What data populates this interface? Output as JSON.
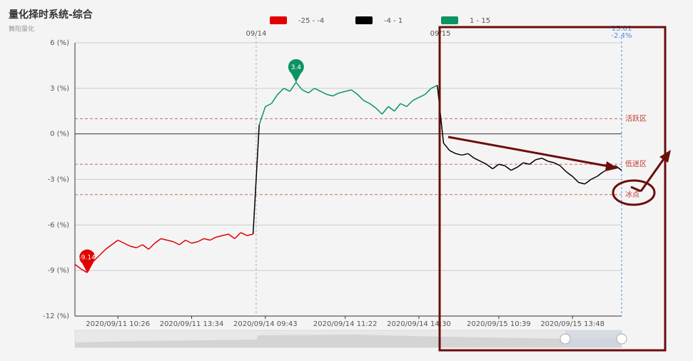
{
  "chart_data": {
    "type": "line",
    "title": "量化择时系统-综合",
    "subtitle": "舞阳量化",
    "pieces": [
      {
        "label": "-25 - -4",
        "min": -25,
        "max": -4,
        "color": "#e00000"
      },
      {
        "label": "-4 - 1",
        "min": -4,
        "max": 1,
        "color": "#000000"
      },
      {
        "label": "1 - 15",
        "min": 1,
        "max": 15,
        "color": "#0b9462"
      }
    ],
    "categories": [
      null,
      null,
      null,
      null,
      null,
      null,
      null,
      "2020/09/11 10:26",
      null,
      null,
      null,
      null,
      null,
      null,
      null,
      null,
      null,
      null,
      null,
      "2020/09/11 13:34",
      null,
      null,
      null,
      null,
      null,
      null,
      null,
      null,
      null,
      null,
      null,
      "2020/09/14 09:43",
      null,
      null,
      null,
      null,
      null,
      null,
      null,
      null,
      null,
      null,
      null,
      null,
      "2020/09/14 11:22",
      null,
      null,
      null,
      null,
      null,
      null,
      null,
      null,
      null,
      null,
      null,
      "2020/09/14 14:30",
      null,
      null,
      null,
      null,
      null,
      null,
      null,
      null,
      null,
      null,
      null,
      null,
      "2020/09/15 10:39",
      null,
      null,
      null,
      null,
      null,
      null,
      null,
      null,
      null,
      null,
      null,
      "2020/09/15 13:48",
      null,
      null,
      null,
      null,
      null,
      null,
      null,
      null
    ],
    "values": [
      -8.6,
      -8.9,
      -9.14,
      -8.4,
      -8.0,
      -7.6,
      -7.3,
      -7.0,
      -7.2,
      -7.4,
      -7.5,
      -7.3,
      -7.6,
      -7.2,
      -6.9,
      -7.0,
      -7.1,
      -7.3,
      -7.0,
      -7.2,
      -7.1,
      -6.9,
      -7.0,
      -6.8,
      -6.7,
      -6.6,
      -6.9,
      -6.5,
      -6.7,
      -6.6,
      0.6,
      1.8,
      2.0,
      2.6,
      3.0,
      2.8,
      3.4,
      2.9,
      2.7,
      3.0,
      2.8,
      2.6,
      2.5,
      2.7,
      2.8,
      2.9,
      2.6,
      2.2,
      2.0,
      1.7,
      1.3,
      1.8,
      1.5,
      2.0,
      1.8,
      2.2,
      2.4,
      2.6,
      3.0,
      3.2,
      -0.6,
      -1.1,
      -1.3,
      -1.4,
      -1.3,
      -1.6,
      -1.8,
      -2.0,
      -2.3,
      -2.0,
      -2.1,
      -2.4,
      -2.2,
      -1.9,
      -2.0,
      -1.7,
      -1.6,
      -1.8,
      -1.9,
      -2.1,
      -2.5,
      -2.8,
      -3.2,
      -3.3,
      -3.0,
      -2.8,
      -2.5,
      -2.3,
      -2.1,
      -2.4
    ],
    "pin_min_label": "-9.14",
    "pin_max_label": "3.4",
    "last_time": "15:01",
    "last_label": "-2.4%",
    "day_labels": [
      "09/14",
      "09/15"
    ],
    "mark_lines": [
      {
        "value": 1,
        "label": "活跃区"
      },
      {
        "value": -2,
        "label": "低迷区"
      },
      {
        "value": -4,
        "label": "冰点"
      }
    ],
    "ylim": [
      -12,
      6
    ],
    "yticks": [
      {
        "value": -12,
        "label": "-12 (%)"
      },
      {
        "value": -9,
        "label": "-9 (%)"
      },
      {
        "value": -6,
        "label": "-6 (%)"
      },
      {
        "value": -3,
        "label": "-3 (%)"
      },
      {
        "value": 0,
        "label": "0 (%)"
      },
      {
        "value": 3,
        "label": "3 (%)"
      },
      {
        "value": 6,
        "label": "6 (%)"
      }
    ],
    "grid": true
  }
}
